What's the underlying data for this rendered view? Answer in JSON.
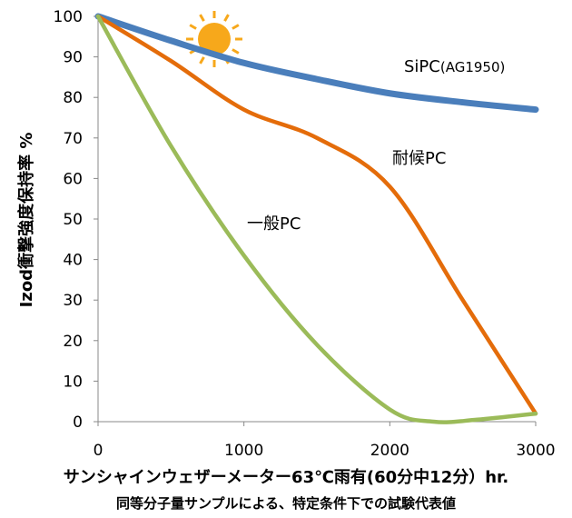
{
  "chart_data": {
    "type": "line",
    "title": "",
    "xlabel": "サンシャインウェザーメーター63℃雨有(60分中12分）hr.",
    "ylabel": "Izod衝撃強度保持率 %",
    "note": "同等分子量サンプルによる、特定条件下での試験代表値",
    "xlim": [
      0,
      3000
    ],
    "ylim": [
      0,
      100
    ],
    "xticks": [
      "0",
      "1000",
      "2000",
      "3000"
    ],
    "yticks": [
      "0",
      "10",
      "20",
      "30",
      "40",
      "50",
      "60",
      "70",
      "80",
      "90",
      "100"
    ],
    "grid": false,
    "series": [
      {
        "name": "SiPC",
        "name_sub": "(AG1950)",
        "color": "#4a7ebb",
        "x": [
          0,
          500,
          1000,
          1500,
          2000,
          2500,
          3000
        ],
        "y": [
          100,
          94,
          88.5,
          84.5,
          81,
          78.8,
          77
        ]
      },
      {
        "name": "耐候PC",
        "color": "#e46c0a",
        "x": [
          0,
          500,
          1000,
          1500,
          2000,
          2500,
          3000
        ],
        "y": [
          100,
          89,
          77,
          70,
          58,
          30,
          2
        ]
      },
      {
        "name": "一般PC",
        "color": "#9bbb59",
        "x": [
          0,
          500,
          1000,
          1500,
          2000,
          2300,
          2600,
          3000
        ],
        "y": [
          100,
          68,
          41,
          19,
          3,
          0,
          0.5,
          2
        ]
      }
    ],
    "icon": "sun-icon"
  }
}
